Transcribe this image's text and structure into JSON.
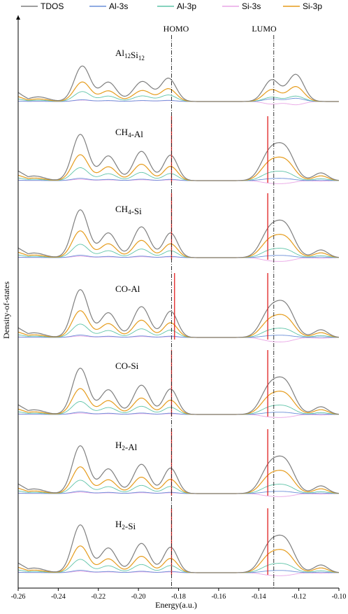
{
  "chart_data": {
    "type": "line",
    "xlabel": "Energy(a.u.)",
    "ylabel": "Density-of-states",
    "xlim": [
      -0.26,
      -0.1
    ],
    "xticks": [
      "-0.26",
      "-0.24",
      "-0.22",
      "-0.20",
      "-0.18",
      "-0.16",
      "-0.14",
      "-0.12",
      "-0.10"
    ],
    "legend_position": "top",
    "series_colors": {
      "TDOS": "#7f7f7f",
      "Al-3s": "#6a8fd8",
      "Al-3p": "#5fc4a8",
      "Si-3s": "#e9a6e6",
      "Si-3p": "#e69c1c"
    },
    "legend": [
      "TDOS",
      "Al-3s",
      "Al-3p",
      "Si-3s",
      "Si-3p"
    ],
    "frontier_labels": {
      "homo": "HOMO",
      "lumo": "LUMO"
    },
    "reference_lines": {
      "homo_energy": -0.1835,
      "lumo_energy": -0.1325
    },
    "panels": [
      {
        "label_main": "Al",
        "sub1": "12",
        "label_mid": "Si",
        "sub2": "12",
        "label_end": "",
        "homo_marker": null,
        "lumo_marker": null,
        "peaks": {
          "occ": [
            [
              -0.25,
              0.06,
              0.005
            ],
            [
              -0.228,
              0.46,
              0.004
            ],
            [
              -0.215,
              0.25,
              0.004
            ],
            [
              -0.198,
              0.26,
              0.0045
            ],
            [
              -0.185,
              0.3,
              0.0038
            ]
          ],
          "virt": [
            [
              -0.1335,
              0.28,
              0.004
            ],
            [
              -0.1215,
              0.35,
              0.004
            ]
          ]
        },
        "ratios": {
          "Al-3p": [
            0.28,
            0.2
          ],
          "Si-3p": [
            0.55,
            0.55
          ],
          "Al-3s": [
            0.05,
            0.12
          ],
          "Si-3s": [
            0.04,
            -0.12
          ]
        }
      },
      {
        "label_main": "CH",
        "sub1": "4",
        "label_mid": "-Al",
        "sub2": "",
        "label_end": "",
        "homo_marker": -0.1835,
        "lumo_marker": -0.1355,
        "peaks": {
          "occ": [
            [
              -0.252,
              0.06,
              0.005
            ],
            [
              -0.229,
              0.6,
              0.004
            ],
            [
              -0.215,
              0.32,
              0.004
            ],
            [
              -0.1985,
              0.38,
              0.004
            ],
            [
              -0.184,
              0.33,
              0.0035
            ]
          ],
          "virt": [
            [
              -0.1345,
              0.35,
              0.0045
            ],
            [
              -0.1265,
              0.38,
              0.0045
            ],
            [
              -0.109,
              0.1,
              0.0035
            ]
          ]
        },
        "ratios": {
          "Al-3p": [
            0.28,
            0.25
          ],
          "Si-3p": [
            0.56,
            0.62
          ],
          "Al-3s": [
            0.05,
            0.06
          ],
          "Si-3s": [
            0.03,
            -0.08
          ]
        }
      },
      {
        "label_main": "CH",
        "sub1": "4",
        "label_mid": "-Si",
        "sub2": "",
        "label_end": "",
        "homo_marker": -0.1835,
        "lumo_marker": -0.1355,
        "peaks": {
          "occ": [
            [
              -0.252,
              0.06,
              0.005
            ],
            [
              -0.229,
              0.62,
              0.004
            ],
            [
              -0.215,
              0.32,
              0.004
            ],
            [
              -0.1985,
              0.4,
              0.004
            ],
            [
              -0.184,
              0.32,
              0.0035
            ]
          ],
          "virt": [
            [
              -0.1345,
              0.34,
              0.0045
            ],
            [
              -0.1265,
              0.38,
              0.0045
            ],
            [
              -0.109,
              0.1,
              0.0035
            ]
          ]
        },
        "ratios": {
          "Al-3p": [
            0.28,
            0.25
          ],
          "Si-3p": [
            0.56,
            0.62
          ],
          "Al-3s": [
            0.05,
            0.06
          ],
          "Si-3s": [
            0.03,
            -0.1
          ]
        }
      },
      {
        "label_main": "CO-Al",
        "sub1": "",
        "label_mid": "",
        "sub2": "",
        "label_end": "",
        "homo_marker": -0.182,
        "lumo_marker": -0.1355,
        "peaks": {
          "occ": [
            [
              -0.252,
              0.06,
              0.005
            ],
            [
              -0.229,
              0.62,
              0.004
            ],
            [
              -0.215,
              0.32,
              0.004
            ],
            [
              -0.1985,
              0.4,
              0.004
            ],
            [
              -0.184,
              0.34,
              0.0035
            ]
          ],
          "virt": [
            [
              -0.1345,
              0.33,
              0.0045
            ],
            [
              -0.1265,
              0.38,
              0.0045
            ],
            [
              -0.109,
              0.1,
              0.0035
            ]
          ]
        },
        "ratios": {
          "Al-3p": [
            0.28,
            0.25
          ],
          "Si-3p": [
            0.56,
            0.62
          ],
          "Al-3s": [
            0.05,
            0.06
          ],
          "Si-3s": [
            0.03,
            -0.12
          ]
        }
      },
      {
        "label_main": "CO-Si",
        "sub1": "",
        "label_mid": "",
        "sub2": "",
        "label_end": "",
        "homo_marker": -0.1835,
        "lumo_marker": -0.1355,
        "peaks": {
          "occ": [
            [
              -0.252,
              0.06,
              0.005
            ],
            [
              -0.229,
              0.6,
              0.004
            ],
            [
              -0.215,
              0.32,
              0.004
            ],
            [
              -0.1985,
              0.38,
              0.004
            ],
            [
              -0.184,
              0.33,
              0.0035
            ]
          ],
          "virt": [
            [
              -0.1345,
              0.34,
              0.0045
            ],
            [
              -0.1265,
              0.38,
              0.0045
            ],
            [
              -0.109,
              0.1,
              0.0035
            ]
          ]
        },
        "ratios": {
          "Al-3p": [
            0.28,
            0.25
          ],
          "Si-3p": [
            0.56,
            0.62
          ],
          "Al-3s": [
            0.05,
            0.06
          ],
          "Si-3s": [
            0.03,
            -0.08
          ]
        }
      },
      {
        "label_main": "H",
        "sub1": "2",
        "label_mid": "-Al",
        "sub2": "",
        "label_end": "",
        "homo_marker": -0.1835,
        "lumo_marker": -0.1355,
        "peaks": {
          "occ": [
            [
              -0.252,
              0.06,
              0.005
            ],
            [
              -0.229,
              0.62,
              0.004
            ],
            [
              -0.215,
              0.32,
              0.004
            ],
            [
              -0.1985,
              0.38,
              0.004
            ],
            [
              -0.184,
              0.33,
              0.0035
            ]
          ],
          "virt": [
            [
              -0.1345,
              0.34,
              0.0045
            ],
            [
              -0.1265,
              0.38,
              0.0045
            ],
            [
              -0.109,
              0.1,
              0.0035
            ]
          ]
        },
        "ratios": {
          "Al-3p": [
            0.28,
            0.25
          ],
          "Si-3p": [
            0.56,
            0.62
          ],
          "Al-3s": [
            0.05,
            0.06
          ],
          "Si-3s": [
            0.03,
            -0.08
          ]
        }
      },
      {
        "label_main": "H",
        "sub1": "2",
        "label_mid": "-Si",
        "sub2": "",
        "label_end": "",
        "homo_marker": -0.1835,
        "lumo_marker": -0.1355,
        "peaks": {
          "occ": [
            [
              -0.252,
              0.06,
              0.005
            ],
            [
              -0.229,
              0.62,
              0.004
            ],
            [
              -0.215,
              0.32,
              0.004
            ],
            [
              -0.1985,
              0.38,
              0.004
            ],
            [
              -0.184,
              0.33,
              0.0035
            ]
          ],
          "virt": [
            [
              -0.1345,
              0.34,
              0.0045
            ],
            [
              -0.1265,
              0.38,
              0.0045
            ],
            [
              -0.109,
              0.1,
              0.0035
            ]
          ]
        },
        "ratios": {
          "Al-3p": [
            0.28,
            0.25
          ],
          "Si-3p": [
            0.56,
            0.62
          ],
          "Al-3s": [
            0.05,
            0.06
          ],
          "Si-3s": [
            0.03,
            -0.08
          ]
        }
      }
    ]
  }
}
